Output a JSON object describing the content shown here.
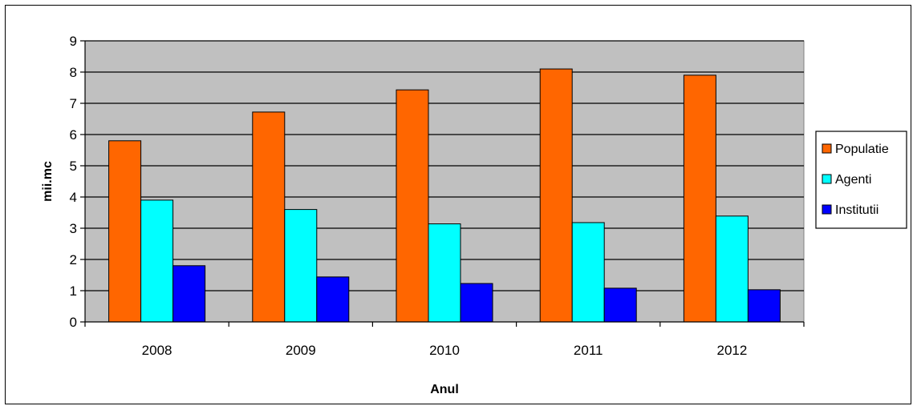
{
  "chart_data": {
    "type": "bar",
    "title": "",
    "xlabel": "Anul",
    "ylabel": "mii.mc",
    "ylim": [
      0,
      9
    ],
    "yticks": [
      0,
      1,
      2,
      3,
      4,
      5,
      6,
      7,
      8,
      9
    ],
    "grid": true,
    "plot_background": "#C0C0C0",
    "legend_position": "right",
    "categories": [
      "2008",
      "2009",
      "2010",
      "2011",
      "2012"
    ],
    "series": [
      {
        "name": "Populatie",
        "color": "#FF6600",
        "values": [
          5.8,
          6.72,
          7.43,
          8.1,
          7.9
        ]
      },
      {
        "name": "Agenti",
        "color": "#00FFFF",
        "values": [
          3.9,
          3.6,
          3.14,
          3.18,
          3.39
        ]
      },
      {
        "name": "Institutii",
        "color": "#0000FF",
        "values": [
          1.8,
          1.44,
          1.23,
          1.08,
          1.03
        ]
      }
    ]
  }
}
